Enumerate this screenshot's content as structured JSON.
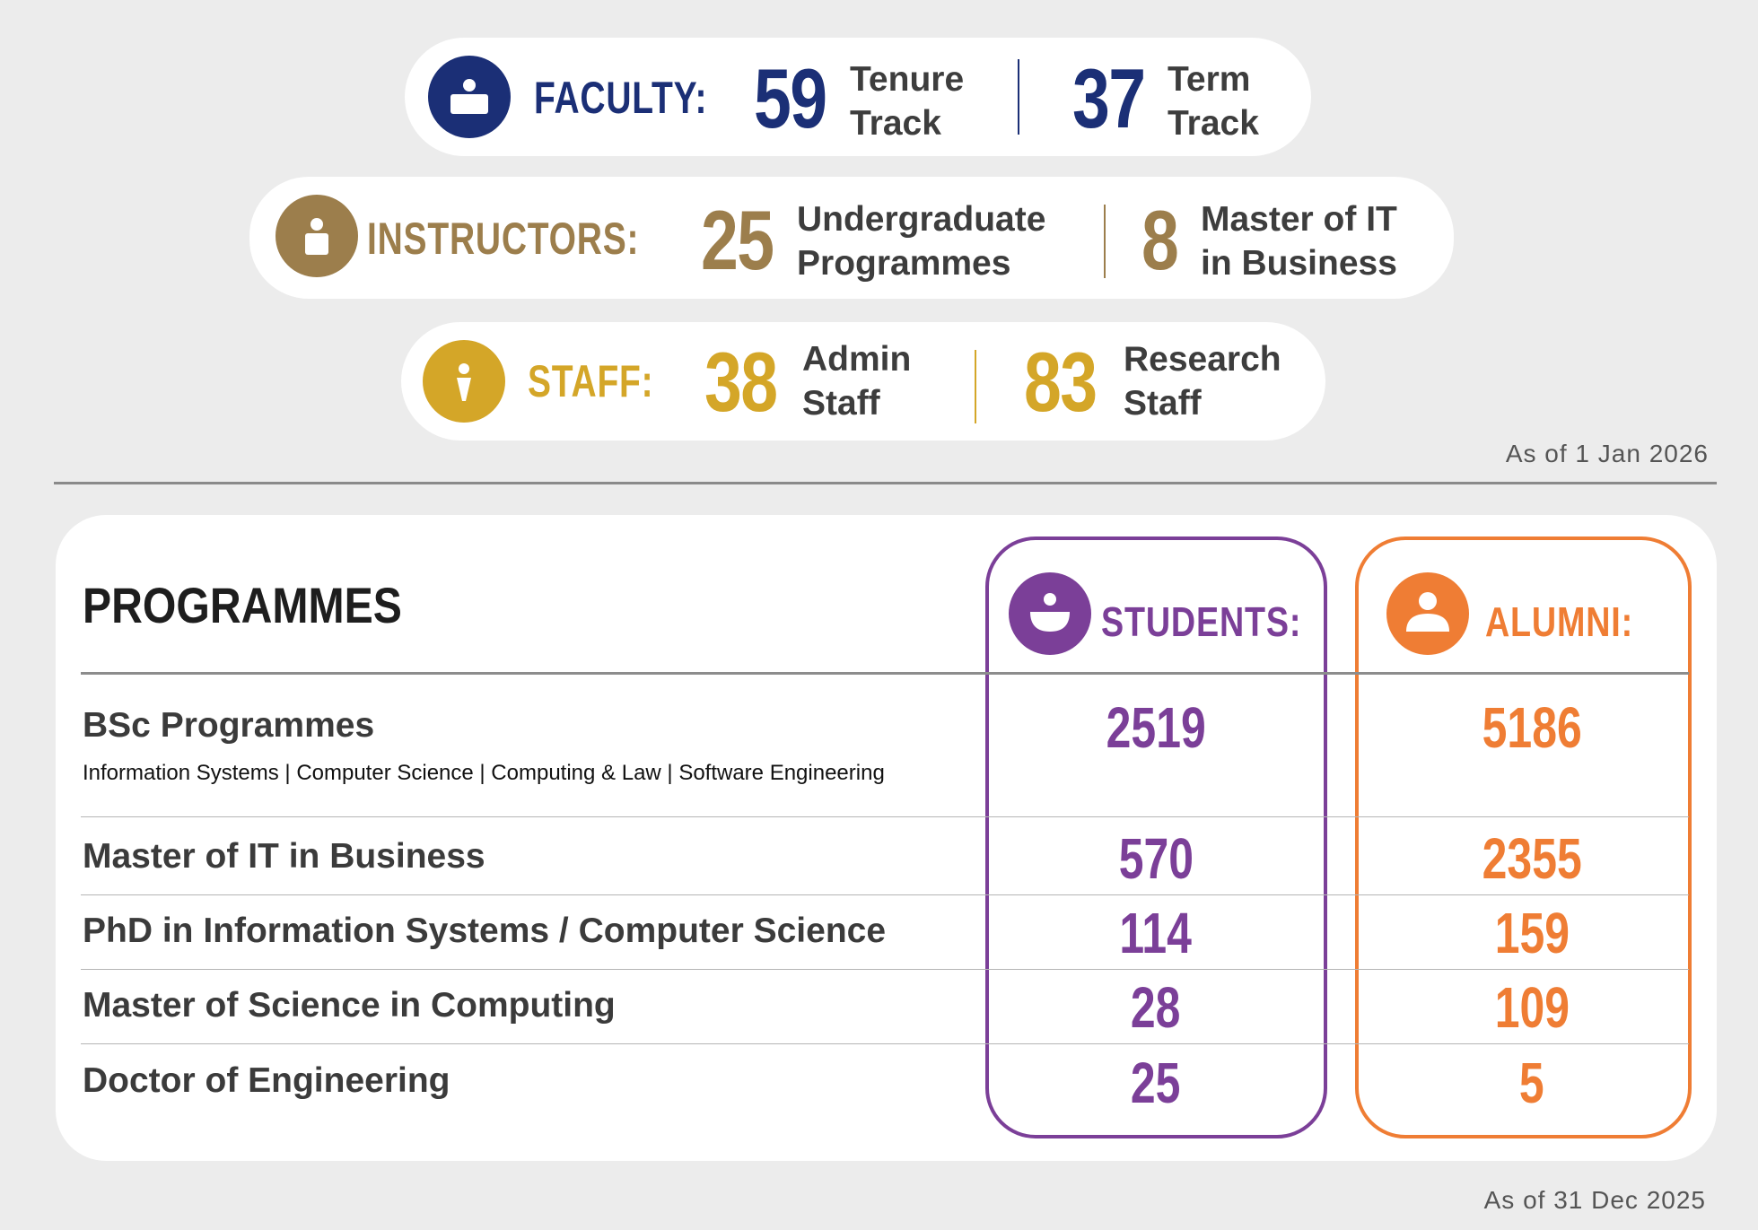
{
  "faculty": {
    "label": "FACULTY:",
    "items": [
      {
        "value": "59",
        "desc": "Tenure Track"
      },
      {
        "value": "37",
        "desc": "Term Track"
      }
    ],
    "color": "#1b2f76",
    "icon": "person-icon"
  },
  "instructors": {
    "label": "INSTRUCTORS:",
    "items": [
      {
        "value": "25",
        "desc": "Undergraduate Programmes"
      },
      {
        "value": "8",
        "desc": "Master of IT in Business"
      }
    ],
    "color": "#9c7e4c",
    "icon": "person-icon"
  },
  "staff": {
    "label": "STAFF:",
    "items": [
      {
        "value": "38",
        "desc": "Admin Staff"
      },
      {
        "value": "83",
        "desc": "Research Staff"
      }
    ],
    "color": "#d4a628",
    "icon": "person-icon"
  },
  "as_of_top": "As of 1 Jan 2026",
  "programmes": {
    "heading": "PROGRAMMES",
    "students_label": "STUDENTS:",
    "alumni_label": "ALUMNI:",
    "students_color": "#7b3f98",
    "alumni_color": "#ef7d34",
    "rows": [
      {
        "title": "BSc Programmes",
        "subtitle": "Information Systems | Computer Science | Computing & Law | Software Engineering",
        "students": "2519",
        "alumni": "5186"
      },
      {
        "title": "Master of IT in Business",
        "students": "570",
        "alumni": "2355"
      },
      {
        "title": "PhD in Information Systems / Computer Science",
        "students": "114",
        "alumni": "159"
      },
      {
        "title": "Master of Science in Computing",
        "students": "28",
        "alumni": "109"
      },
      {
        "title": "Doctor of Engineering",
        "students": "25",
        "alumni": "5"
      }
    ]
  },
  "as_of_bottom": "As of 31 Dec 2025"
}
